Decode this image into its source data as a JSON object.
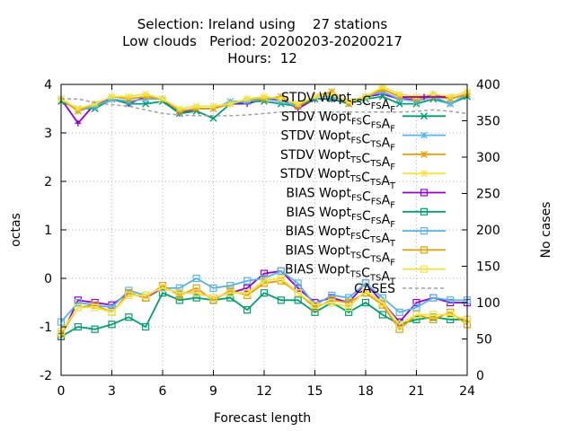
{
  "chart_data": {
    "type": "line",
    "title_lines": [
      "Selection: Ireland using    27 stations",
      "Low clouds   Period: 20200203-20200217",
      "Hours:  12"
    ],
    "xlabel": "Forecast length",
    "ylabel": "octas",
    "y2label": "No cases",
    "xlim": [
      0,
      24
    ],
    "ylim": [
      -2,
      4
    ],
    "y2lim": [
      0,
      400
    ],
    "xticks": [
      "0",
      "3",
      "6",
      "9",
      "12",
      "15",
      "18",
      "21",
      "24"
    ],
    "yticks": [
      "-2",
      "-1",
      "0",
      "1",
      "2",
      "3",
      "4"
    ],
    "y2ticks": [
      "0",
      "50",
      "100",
      "150",
      "200",
      "250",
      "300",
      "350",
      "400"
    ],
    "grid": true,
    "legend_position": "right",
    "x": [
      0,
      1,
      2,
      3,
      4,
      5,
      6,
      7,
      8,
      9,
      10,
      11,
      12,
      13,
      14,
      15,
      16,
      17,
      18,
      19,
      20,
      21,
      22,
      23,
      24
    ],
    "series": [
      {
        "name": {
          "base": "STDV Wopt",
          "parts": [
            [
              "",
              "FS"
            ],
            [
              "C",
              "FS"
            ],
            [
              "A",
              "F"
            ]
          ]
        },
        "color": "#9400d3",
        "marker": "plus",
        "axis": "y",
        "values": [
          3.7,
          3.2,
          3.6,
          3.7,
          3.6,
          3.75,
          3.7,
          3.4,
          3.5,
          3.5,
          3.6,
          3.6,
          3.7,
          3.7,
          3.5,
          3.7,
          3.7,
          3.6,
          3.75,
          3.8,
          3.7,
          3.7,
          3.8,
          3.7,
          3.8
        ]
      },
      {
        "name": {
          "base": "STDV Wopt",
          "parts": [
            [
              "",
              "FS"
            ],
            [
              "C",
              "FS"
            ],
            [
              "A",
              "F"
            ]
          ]
        },
        "color": "#009e73",
        "marker": "x",
        "axis": "y",
        "values": [
          3.65,
          3.5,
          3.5,
          3.7,
          3.6,
          3.6,
          3.65,
          3.4,
          3.45,
          3.3,
          3.6,
          3.65,
          3.65,
          3.6,
          3.55,
          3.7,
          3.7,
          3.6,
          3.7,
          3.75,
          3.6,
          3.6,
          3.7,
          3.6,
          3.75
        ]
      },
      {
        "name": {
          "base": "STDV Wopt",
          "parts": [
            [
              "",
              "FS"
            ],
            [
              "C",
              "TS"
            ],
            [
              "A",
              "F"
            ]
          ]
        },
        "color": "#56b4e9",
        "marker": "star",
        "axis": "y",
        "values": [
          3.7,
          3.45,
          3.55,
          3.7,
          3.65,
          3.7,
          3.7,
          3.45,
          3.5,
          3.5,
          3.65,
          3.65,
          3.7,
          3.65,
          3.55,
          3.75,
          3.75,
          3.65,
          3.75,
          3.85,
          3.7,
          3.65,
          3.75,
          3.6,
          3.8
        ]
      },
      {
        "name": {
          "base": "STDV Wopt",
          "parts": [
            [
              "",
              "TS"
            ],
            [
              "C",
              "TS"
            ],
            [
              "A",
              "F"
            ]
          ]
        },
        "color": "#e69f00",
        "marker": "star",
        "axis": "y",
        "values": [
          3.7,
          3.45,
          3.6,
          3.75,
          3.7,
          3.75,
          3.7,
          3.45,
          3.5,
          3.5,
          3.6,
          3.7,
          3.7,
          3.75,
          3.55,
          3.75,
          3.85,
          3.6,
          3.75,
          3.9,
          3.75,
          3.7,
          3.75,
          3.7,
          3.8
        ]
      },
      {
        "name": {
          "base": "STDV Wopt",
          "parts": [
            [
              "",
              "TS"
            ],
            [
              "C",
              "TS"
            ],
            [
              "A",
              "T"
            ]
          ]
        },
        "color": "#f0e442",
        "marker": "star",
        "axis": "y",
        "values": [
          3.7,
          3.5,
          3.6,
          3.75,
          3.75,
          3.8,
          3.7,
          3.5,
          3.55,
          3.55,
          3.6,
          3.7,
          3.75,
          3.7,
          3.6,
          3.75,
          3.8,
          3.65,
          3.75,
          3.95,
          3.8,
          3.75,
          3.8,
          3.75,
          3.85
        ]
      },
      {
        "name": {
          "base": "BIAS Wopt",
          "parts": [
            [
              "",
              "FS"
            ],
            [
              "C",
              "FS"
            ],
            [
              "A",
              "F"
            ]
          ]
        },
        "color": "#9400d3",
        "marker": "square",
        "axis": "y",
        "values": [
          -1.2,
          -0.45,
          -0.5,
          -0.55,
          -0.3,
          -0.4,
          -0.2,
          -0.3,
          -0.3,
          -0.4,
          -0.3,
          -0.2,
          0.1,
          0.15,
          -0.2,
          -0.5,
          -0.4,
          -0.5,
          -0.1,
          -0.5,
          -0.9,
          -0.5,
          -0.4,
          -0.5,
          -0.5
        ]
      },
      {
        "name": {
          "base": "BIAS Wopt",
          "parts": [
            [
              "",
              "FS"
            ],
            [
              "C",
              "FS"
            ],
            [
              "A",
              "F"
            ]
          ]
        },
        "color": "#009e73",
        "marker": "square",
        "axis": "y",
        "values": [
          -1.2,
          -1.0,
          -1.05,
          -0.95,
          -0.8,
          -1.0,
          -0.3,
          -0.45,
          -0.4,
          -0.45,
          -0.4,
          -0.65,
          -0.3,
          -0.45,
          -0.45,
          -0.7,
          -0.5,
          -0.7,
          -0.5,
          -0.75,
          -0.95,
          -0.85,
          -0.8,
          -0.85,
          -0.85
        ]
      },
      {
        "name": {
          "base": "BIAS Wopt",
          "parts": [
            [
              "",
              "FS"
            ],
            [
              "C",
              "TS"
            ],
            [
              "A",
              "T"
            ]
          ]
        },
        "color": "#56b4e9",
        "marker": "square",
        "axis": "y",
        "values": [
          -0.9,
          -0.5,
          -0.55,
          -0.6,
          -0.25,
          -0.35,
          -0.2,
          -0.2,
          0.0,
          -0.2,
          -0.15,
          -0.05,
          0.0,
          0.15,
          -0.1,
          -0.55,
          -0.35,
          -0.4,
          -0.1,
          -0.4,
          -0.7,
          -0.6,
          -0.4,
          -0.45,
          -0.45
        ]
      },
      {
        "name": {
          "base": "BIAS Wopt",
          "parts": [
            [
              "",
              "TS"
            ],
            [
              "C",
              "TS"
            ],
            [
              "A",
              "F"
            ]
          ]
        },
        "color": "#e69f00",
        "marker": "square",
        "axis": "y",
        "values": [
          -1.15,
          -0.6,
          -0.55,
          -0.7,
          -0.3,
          -0.4,
          -0.15,
          -0.35,
          -0.2,
          -0.45,
          -0.25,
          -0.35,
          -0.1,
          -0.05,
          -0.3,
          -0.6,
          -0.45,
          -0.5,
          -0.3,
          -0.55,
          -1.05,
          -0.75,
          -0.85,
          -0.7,
          -0.95
        ]
      },
      {
        "name": {
          "base": "BIAS Wopt",
          "parts": [
            [
              "",
              "TS"
            ],
            [
              "C",
              "TS"
            ],
            [
              "A",
              "T"
            ]
          ]
        },
        "color": "#f0e442",
        "marker": "square",
        "axis": "y",
        "values": [
          -1.1,
          -0.6,
          -0.6,
          -0.7,
          -0.35,
          -0.35,
          -0.2,
          -0.3,
          -0.3,
          -0.4,
          -0.3,
          -0.3,
          -0.05,
          0.0,
          -0.3,
          -0.55,
          -0.5,
          -0.6,
          -0.25,
          -0.5,
          -0.95,
          -0.75,
          -0.75,
          -0.75,
          -0.85
        ]
      },
      {
        "name": {
          "base": "CASES",
          "parts": []
        },
        "color": "#a0a0a0",
        "marker": "none",
        "dashed": true,
        "axis": "y2",
        "values": [
          380,
          380,
          375,
          372,
          370,
          365,
          360,
          358,
          357,
          357,
          357,
          358,
          360,
          362,
          362,
          362,
          362,
          362,
          362,
          362,
          362,
          363,
          365,
          363,
          360
        ]
      }
    ]
  }
}
